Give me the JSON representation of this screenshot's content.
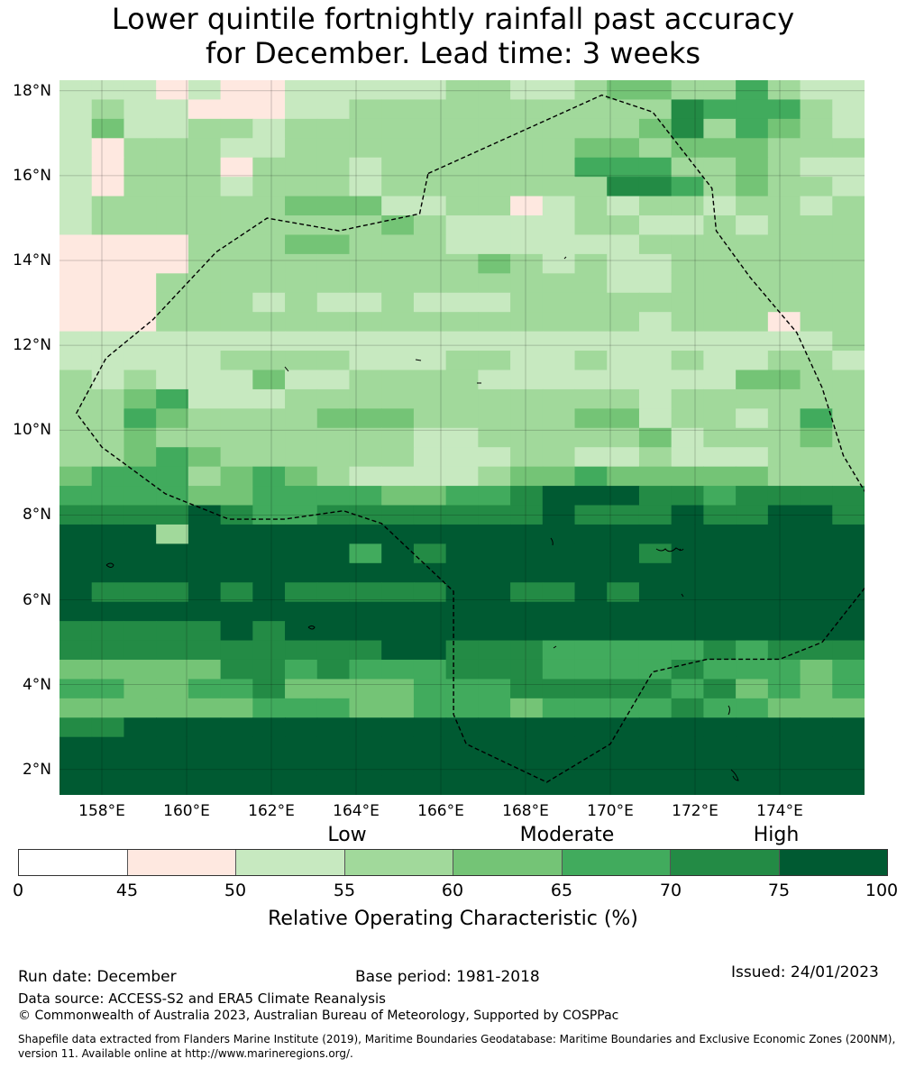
{
  "title": {
    "line1": "Lower quintile fortnightly rainfall past accuracy",
    "line2": "for December. Lead time: 3 weeks"
  },
  "map": {
    "lat_labels": [
      "18°N",
      "16°N",
      "14°N",
      "12°N",
      "10°N",
      "8°N",
      "6°N",
      "4°N",
      "2°N"
    ],
    "lon_labels": [
      "158°E",
      "160°E",
      "162°E",
      "164°E",
      "166°E",
      "168°E",
      "170°E",
      "172°E",
      "174°E"
    ],
    "lat_values": [
      18,
      16,
      14,
      12,
      10,
      8,
      6,
      4,
      2
    ],
    "lon_values": [
      158,
      160,
      162,
      164,
      166,
      168,
      170,
      172,
      174
    ],
    "extent": {
      "lon_min": 157.0,
      "lon_max": 176.0,
      "lat_min": 1.4,
      "lat_max": 18.25
    },
    "grid_rows_north_to_south": [
      "2221211222223322344335322",
      "2322111223333333333655532",
      "2422332333333333334635432",
      "2133322333333333443444333",
      "2133313332333333555334322",
      "2133323332333333366534332",
      "2333333444223312323323323",
      "2333333333432222332232333",
      "1111333443332222223333333",
      "1111333333333432322333333",
      "1113333333333333322333333",
      "1113332322322233333333333",
      "1113333333333333332333133",
      "2222222222222222222222223",
      "2222233332223322322322332",
      "3232224223333222222224433",
      "3345222333333333332333333",
      "3354333344433333442332353",
      "3343333333322333334233343",
      "3345433333322233223222333",
      "4555345432222344544444333",
      "5555445555445567776656666",
      "6666765566666667666766776",
      "7773777777777777777777777",
      "7777777775767777776777777",
      "7777777777777777777777777",
      "7666767666667766767777777",
      "7777777777777777777777777",
      "6666676777777777777777777",
      "6666666666776665555565666",
      "4444466565556665555655545",
      "5544556444455566666564545",
      "4444445554455545555655444",
      "6677777777777777777777777",
      "7777777777777777777777777",
      "7777777777777777777777777",
      "7777777777777777777777777"
    ],
    "palette": [
      "#ffffff",
      "#fee8e0",
      "#c7e9c0",
      "#a1d99b",
      "#74c476",
      "#41ab5d",
      "#238b45",
      "#005a32"
    ],
    "eez_boundary": [
      [
        165.7,
        16.05
      ],
      [
        169.8,
        17.9
      ],
      [
        171.0,
        17.5
      ],
      [
        172.4,
        15.7
      ],
      [
        172.5,
        14.7
      ],
      [
        173.3,
        13.6
      ],
      [
        174.4,
        12.3
      ],
      [
        175.0,
        11.0
      ],
      [
        175.5,
        9.4
      ],
      [
        176.1,
        8.4
      ],
      [
        176.1,
        6.4
      ],
      [
        175.0,
        5.0
      ],
      [
        174.0,
        4.6
      ],
      [
        172.3,
        4.6
      ],
      [
        171.0,
        4.3
      ],
      [
        170.0,
        2.6
      ],
      [
        168.5,
        1.7
      ],
      [
        166.6,
        2.6
      ],
      [
        166.3,
        3.3
      ],
      [
        166.3,
        6.2
      ],
      [
        164.6,
        7.8
      ],
      [
        163.7,
        8.1
      ],
      [
        162.3,
        7.9
      ],
      [
        161.0,
        7.9
      ],
      [
        159.5,
        8.5
      ],
      [
        158.0,
        9.6
      ],
      [
        157.4,
        10.4
      ],
      [
        158.1,
        11.7
      ],
      [
        159.2,
        12.6
      ],
      [
        160.7,
        14.2
      ],
      [
        161.9,
        15.0
      ],
      [
        163.6,
        14.7
      ],
      [
        165.5,
        15.1
      ],
      [
        165.7,
        16.05
      ]
    ]
  },
  "categories": {
    "low": "Low",
    "moderate": "Moderate",
    "high": "High"
  },
  "colorbar": {
    "ticks": [
      "0",
      "45",
      "50",
      "55",
      "60",
      "65",
      "70",
      "75",
      "100"
    ],
    "colors": [
      "#ffffff",
      "#fee8e0",
      "#c7e9c0",
      "#a1d99b",
      "#74c476",
      "#41ab5d",
      "#238b45",
      "#005a32"
    ],
    "label": "Relative Operating Characteristic (%)"
  },
  "footer": {
    "run_date": "Run date: December",
    "base_period": "Base period: 1981-2018",
    "issued": "Issued: 24/01/2023",
    "data_source": "Data source: ACCESS-S2 and ERA5 Climate Reanalysis",
    "copyright": "© Commonwealth of Australia 2023, Australian Bureau of Meteorology, Supported by COSPPac",
    "shapefile": "Shapefile data extracted from Flanders Marine Institute (2019), Maritime Boundaries Geodatabase: Maritime Boundaries and Exclusive Economic Zones (200NM), version 11. Available online at http://www.marineregions.org/."
  }
}
